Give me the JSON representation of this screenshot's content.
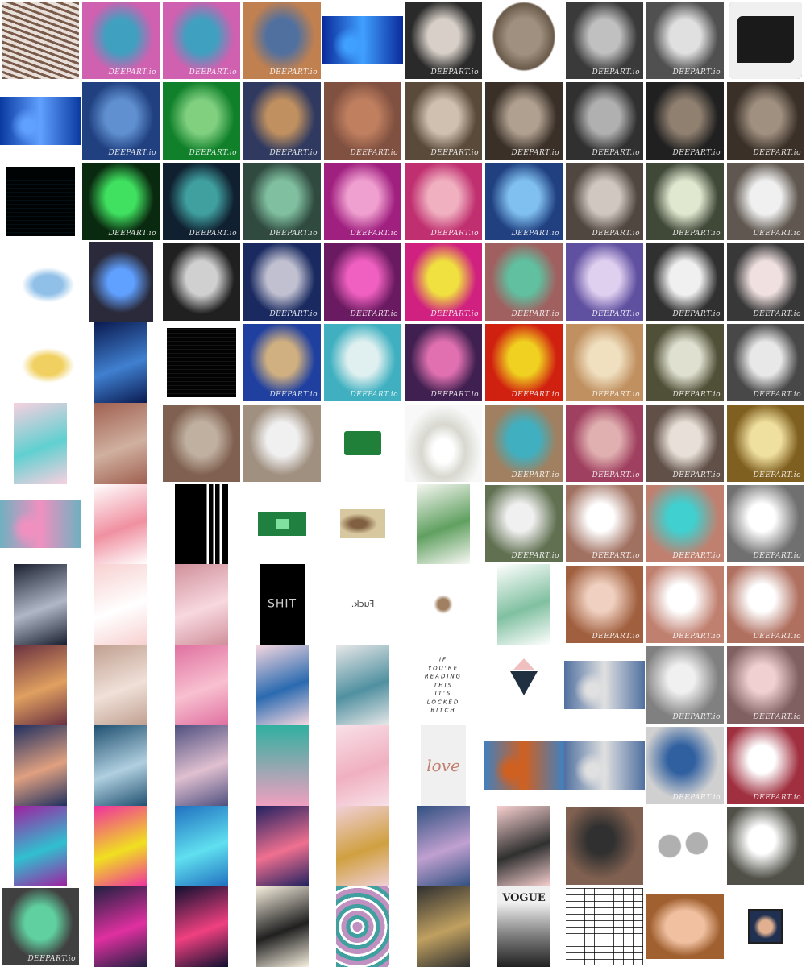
{
  "gallery": {
    "title": "",
    "watermark_text": "DEEPART.io",
    "rows": [
      [
        {
          "label": "zebra-stripe portrait",
          "c1": "#7a5a4a",
          "c2": "#e8e0d8",
          "style": "stripes"
        },
        {
          "label": "psychedelic portrait",
          "c1": "#d060b0",
          "c2": "#40a0c0",
          "style": "portrait",
          "wm": true
        },
        {
          "label": "psychedelic portrait copy",
          "c1": "#d060b0",
          "c2": "#40a0c0",
          "style": "portrait",
          "wm": true
        },
        {
          "label": "colourful painted portrait",
          "c1": "#c08050",
          "c2": "#5070a0",
          "style": "portrait",
          "wm": true
        },
        {
          "label": "blue tech banner",
          "c1": "#0a2a9a",
          "c2": "#40a0ff",
          "style": "banner"
        },
        {
          "label": "monochrome comic portrait",
          "c1": "#2a2a2a",
          "c2": "#d8d0c8",
          "style": "portrait",
          "wm": true
        },
        {
          "label": "carved skull",
          "c1": "#6a5a4a",
          "c2": "#a09080",
          "style": "skull"
        },
        {
          "label": "grey portrait",
          "c1": "#3a3a3a",
          "c2": "#c0c0c0",
          "style": "portrait",
          "wm": true
        },
        {
          "label": "grey portrait bright",
          "c1": "#505050",
          "c2": "#e0e0e0",
          "style": "portrait",
          "wm": true
        },
        {
          "label": "3d printer",
          "c1": "#1a1a1a",
          "c2": "#f0f0f0",
          "style": "printer"
        }
      ],
      [
        {
          "label": "circuit board photo",
          "c1": "#0a3aa0",
          "c2": "#60a0ff",
          "style": "banner"
        },
        {
          "label": "blue circuit portrait",
          "c1": "#204080",
          "c2": "#6090d0",
          "style": "portrait",
          "wm": true
        },
        {
          "label": "green circuit portrait",
          "c1": "#10802a",
          "c2": "#80d080",
          "style": "portrait",
          "wm": true
        },
        {
          "label": "dark blue portrait",
          "c1": "#303a60",
          "c2": "#c09060",
          "style": "portrait",
          "wm": true
        },
        {
          "label": "brown textured portrait",
          "c1": "#805040",
          "c2": "#c08060",
          "style": "portrait",
          "wm": true
        },
        {
          "label": "sepia portrait",
          "c1": "#5a4a3a",
          "c2": "#d0c0b0",
          "style": "portrait",
          "wm": true
        },
        {
          "label": "charcoal portrait",
          "c1": "#3a3028",
          "c2": "#b0a090",
          "style": "portrait",
          "wm": true
        },
        {
          "label": "dark grey portrait",
          "c1": "#303030",
          "c2": "#b0b0b0",
          "style": "portrait",
          "wm": true
        },
        {
          "label": "black portrait",
          "c1": "#202020",
          "c2": "#908070",
          "style": "portrait",
          "wm": true
        },
        {
          "label": "dark sepia portrait",
          "c1": "#3a3028",
          "c2": "#a09080",
          "style": "portrait",
          "wm": true
        }
      ],
      [
        {
          "label": "dark circuit texture",
          "c1": "#0a1a20",
          "c2": "#30a0b0",
          "style": "square-small"
        },
        {
          "label": "neon green circuit portrait",
          "c1": "#0a2a10",
          "c2": "#40e060",
          "style": "portrait",
          "wm": true
        },
        {
          "label": "teal circuit portrait",
          "c1": "#102030",
          "c2": "#40a0a0",
          "style": "portrait",
          "wm": true
        },
        {
          "label": "green teal portrait",
          "c1": "#304a40",
          "c2": "#80c0a0",
          "style": "portrait",
          "wm": true
        },
        {
          "label": "magenta portrait",
          "c1": "#a02080",
          "c2": "#f0a0d0",
          "style": "portrait",
          "wm": true
        },
        {
          "label": "pink portrait",
          "c1": "#c03070",
          "c2": "#f0b0c0",
          "style": "portrait",
          "wm": true
        },
        {
          "label": "blue portrait",
          "c1": "#204080",
          "c2": "#80c0f0",
          "style": "portrait",
          "wm": true
        },
        {
          "label": "soft grey portrait",
          "c1": "#504840",
          "c2": "#d0c8c0",
          "style": "portrait",
          "wm": true
        },
        {
          "label": "light portrait",
          "c1": "#404838",
          "c2": "#e0e8d0",
          "style": "portrait",
          "wm": true
        },
        {
          "label": "sketch portrait",
          "c1": "#605850",
          "c2": "#f0f0f0",
          "style": "portrait",
          "wm": true
        }
      ],
      [
        {
          "label": "princess illustration",
          "c1": "#ffffff",
          "c2": "#90c0e8",
          "style": "figure"
        },
        {
          "label": "pc case",
          "c1": "#2a2a3a",
          "c2": "#60a0ff",
          "style": "pc"
        },
        {
          "label": "bw circuit portrait",
          "c1": "#202020",
          "c2": "#d0d0d0",
          "style": "portrait",
          "wm": false
        },
        {
          "label": "dark blue circuit portrait",
          "c1": "#1a2a60",
          "c2": "#c0c0d0",
          "style": "portrait",
          "wm": true
        },
        {
          "label": "neon pink portrait",
          "c1": "#6a1a60",
          "c2": "#f060c0",
          "style": "portrait",
          "wm": true
        },
        {
          "label": "hot pink portrait",
          "c1": "#d02080",
          "c2": "#f0e040",
          "style": "portrait",
          "wm": true
        },
        {
          "label": "pastel portrait",
          "c1": "#a06060",
          "c2": "#60c0a0",
          "style": "portrait",
          "wm": true
        },
        {
          "label": "lilac portrait",
          "c1": "#6050a0",
          "c2": "#e0d0f0",
          "style": "portrait",
          "wm": true
        },
        {
          "label": "monochrome light portrait",
          "c1": "#303030",
          "c2": "#f0f0f0",
          "style": "portrait",
          "wm": true
        },
        {
          "label": "red accent portrait",
          "c1": "#383838",
          "c2": "#f0e0e0",
          "style": "portrait",
          "wm": true
        }
      ],
      [
        {
          "label": "princess yellow illustration",
          "c1": "#ffffff",
          "c2": "#f0d060",
          "style": "figure"
        },
        {
          "label": "blue motherboard",
          "c1": "#0a1a50",
          "c2": "#4080d0",
          "style": "tall"
        },
        {
          "label": "bw circuit square",
          "c1": "#1a1a1a",
          "c2": "#c0c0c0",
          "style": "square-small"
        },
        {
          "label": "blue beige portrait",
          "c1": "#2040a0",
          "c2": "#d0b080",
          "style": "portrait",
          "wm": true
        },
        {
          "label": "cyan sketch",
          "c1": "#40b0c0",
          "c2": "#e0f0f0",
          "style": "portrait",
          "wm": true
        },
        {
          "label": "violet portrait",
          "c1": "#402050",
          "c2": "#e070b0",
          "style": "portrait",
          "wm": true
        },
        {
          "label": "red yellow portrait",
          "c1": "#d02010",
          "c2": "#f0d020",
          "style": "portrait",
          "wm": true
        },
        {
          "label": "peach portrait",
          "c1": "#c09060",
          "c2": "#f0e0c0",
          "style": "portrait",
          "wm": true
        },
        {
          "label": "olive portrait",
          "c1": "#505038",
          "c2": "#e0e0d0",
          "style": "portrait",
          "wm": true
        },
        {
          "label": "grey sketch portrait",
          "c1": "#484848",
          "c2": "#e8e8e8",
          "style": "portrait",
          "wm": true
        }
      ],
      [
        {
          "label": "pink gem pattern",
          "c1": "#f8d0e0",
          "c2": "#60d0d0",
          "style": "tall"
        },
        {
          "label": "brick wall",
          "c1": "#a06050",
          "c2": "#d0b0a0",
          "style": "tall"
        },
        {
          "label": "brick portrait",
          "c1": "#806050",
          "c2": "#c0b0a0",
          "style": "portrait",
          "wm": false
        },
        {
          "label": "faded brick portrait",
          "c1": "#a09080",
          "c2": "#f0f0f0",
          "style": "portrait",
          "wm": false
        },
        {
          "label": "raspberry pi",
          "c1": "#20803a",
          "c2": "#ffffff",
          "style": "small-obj"
        },
        {
          "label": "white castle model",
          "c1": "#d8d8d0",
          "c2": "#f8f8f8",
          "style": "castle"
        },
        {
          "label": "teal painted portrait",
          "c1": "#a08060",
          "c2": "#40b0c0",
          "style": "portrait",
          "wm": true
        },
        {
          "label": "rose portrait",
          "c1": "#a04060",
          "c2": "#e0b0b0",
          "style": "portrait",
          "wm": true
        },
        {
          "label": "taupe portrait",
          "c1": "#605048",
          "c2": "#e8e0d8",
          "style": "portrait",
          "wm": true
        },
        {
          "label": "gold sketch portrait",
          "c1": "#806020",
          "c2": "#f0e0a0",
          "style": "portrait",
          "wm": true
        }
      ],
      [
        {
          "label": "princesses train",
          "c1": "#70b0c0",
          "c2": "#f090c0",
          "style": "banner"
        },
        {
          "label": "flamingo pattern",
          "c1": "#ffffff",
          "c2": "#f090a0",
          "style": "tall"
        },
        {
          "label": "adidas stripes",
          "c1": "#000000",
          "c2": "#ffffff",
          "style": "adidas"
        },
        {
          "label": "green pcb",
          "c1": "#208040",
          "c2": "#80e0a0",
          "style": "pcb"
        },
        {
          "label": "old map",
          "c1": "#d8c8a0",
          "c2": "#806040",
          "style": "map"
        },
        {
          "label": "succulent",
          "c1": "#f8f8f4",
          "c2": "#60a060",
          "style": "tall"
        },
        {
          "label": "green glow portrait",
          "c1": "#607050",
          "c2": "#f0f0f0",
          "style": "glow",
          "wm": true
        },
        {
          "label": "peach glow portrait",
          "c1": "#a07060",
          "c2": "#ffffff",
          "style": "glow",
          "wm": true
        },
        {
          "label": "teal glow portrait",
          "c1": "#c08070",
          "c2": "#40d0d0",
          "style": "glow",
          "wm": true
        },
        {
          "label": "grey glow portrait",
          "c1": "#707070",
          "c2": "#ffffff",
          "style": "glow",
          "wm": true
        }
      ],
      [
        {
          "label": "moon sky",
          "c1": "#1a2030",
          "c2": "#b0b8c8",
          "style": "tall"
        },
        {
          "label": "pink bokeh",
          "c1": "#f8d0d0",
          "c2": "#ffffff",
          "style": "tall"
        },
        {
          "label": "rose glitter",
          "c1": "#d0909a",
          "c2": "#f8d8e0",
          "style": "tall"
        },
        {
          "label": "black text card",
          "c1": "#000000",
          "c2": "#d0d0d0",
          "style": "text-card",
          "text": "SHIT"
        },
        {
          "label": "white text card",
          "c1": "#ffffff",
          "c2": "#404040",
          "style": "text-plain",
          "text": "Fuck."
        },
        {
          "label": "tiny leopard",
          "c1": "#ffffff",
          "c2": "#a08060",
          "style": "tiny"
        },
        {
          "label": "cactus pattern",
          "c1": "#ffffff",
          "c2": "#80c0a0",
          "style": "tall"
        },
        {
          "label": "peach abstract portrait",
          "c1": "#a06040",
          "c2": "#f0d0c0",
          "style": "glow",
          "wm": true
        },
        {
          "label": "salmon glow portrait",
          "c1": "#c08070",
          "c2": "#ffffff",
          "style": "glow",
          "wm": true
        },
        {
          "label": "coral glow portrait",
          "c1": "#b07060",
          "c2": "#ffffff",
          "style": "glow",
          "wm": true
        }
      ],
      [
        {
          "label": "floral pattern",
          "c1": "#6a3040",
          "c2": "#e0a060",
          "style": "tall"
        },
        {
          "label": "rose gold glitter",
          "c1": "#c0a090",
          "c2": "#f0e0d8",
          "style": "tall"
        },
        {
          "label": "pink sparkles",
          "c1": "#e070a0",
          "c2": "#f8c0d0",
          "style": "tall"
        },
        {
          "label": "pink wave",
          "c1": "#f8d8e0",
          "c2": "#2a6ab0",
          "style": "tall"
        },
        {
          "label": "sea horizon",
          "c1": "#e8e8e8",
          "c2": "#5090a0",
          "style": "tall"
        },
        {
          "label": "locked quote",
          "c1": "#ffffff",
          "c2": "#202020",
          "style": "quote",
          "text": "IF\nYOU'RE\nREADING\nTHIS\nIT'S\nLOCKED\nBITCH"
        },
        {
          "label": "triangle logo",
          "c1": "#ffffff",
          "c2": "#203040",
          "style": "triangle"
        },
        {
          "label": "city river photo",
          "c1": "#5070a0",
          "c2": "#e0e0e0",
          "style": "banner"
        },
        {
          "label": "grey fade portrait",
          "c1": "#808080",
          "c2": "#f0f0f0",
          "style": "glow",
          "wm": true
        },
        {
          "label": "dusty rose portrait",
          "c1": "#806060",
          "c2": "#f0d0d0",
          "style": "glow",
          "wm": true
        }
      ],
      [
        {
          "label": "abstract paint",
          "c1": "#203060",
          "c2": "#e0a080",
          "style": "tall"
        },
        {
          "label": "blue marble swirl",
          "c1": "#205070",
          "c2": "#b0d0e0",
          "style": "tall"
        },
        {
          "label": "purple sky bubbles",
          "c1": "#505080",
          "c2": "#e0c0d0",
          "style": "tall"
        },
        {
          "label": "teal pink gradient",
          "c1": "#30b0a0",
          "c2": "#f0a0c0",
          "style": "gradient"
        },
        {
          "label": "pink marble",
          "c1": "#f8e0e8",
          "c2": "#f0b0c0",
          "style": "tall"
        },
        {
          "label": "love balloon",
          "c1": "#f0f0f0",
          "c2": "#c08070",
          "style": "love",
          "text": "love"
        },
        {
          "label": "hair colours",
          "c1": "#4080c0",
          "c2": "#d06020",
          "style": "banner"
        },
        {
          "label": "city river photo copy",
          "c1": "#5070a0",
          "c2": "#e0e0e0",
          "style": "banner"
        },
        {
          "label": "blue white abstract",
          "c1": "#d0d0d0",
          "c2": "#3060a0",
          "style": "glow",
          "wm": true
        },
        {
          "label": "red glow portrait",
          "c1": "#a03040",
          "c2": "#ffffff",
          "style": "glow",
          "wm": true
        }
      ],
      [
        {
          "label": "colour brush strokes",
          "c1": "#a020a0",
          "c2": "#30c0d0",
          "style": "tall"
        },
        {
          "label": "neon paint",
          "c1": "#f030a0",
          "c2": "#f0e020",
          "style": "tall"
        },
        {
          "label": "blue lotus",
          "c1": "#2070c0",
          "c2": "#60e0f0",
          "style": "tall"
        },
        {
          "label": "paisley",
          "c1": "#202060",
          "c2": "#f07090",
          "style": "tall"
        },
        {
          "label": "gold pink marble",
          "c1": "#f0d0d8",
          "c2": "#d0a040",
          "style": "tall"
        },
        {
          "label": "lavender statue",
          "c1": "#305080",
          "c2": "#c0a0d0",
          "style": "tall"
        },
        {
          "label": "frida portrait",
          "c1": "#f8d0d0",
          "c2": "#303030",
          "style": "tall"
        },
        {
          "label": "rust abstract portrait",
          "c1": "#806050",
          "c2": "#303030",
          "style": "glow",
          "wm": false
        },
        {
          "label": "white mugs",
          "c1": "#ffffff",
          "c2": "#b0b0b0",
          "style": "mugs"
        },
        {
          "label": "dark glow portrait",
          "c1": "#505048",
          "c2": "#ffffff",
          "style": "glow",
          "wm": false
        }
      ],
      [
        {
          "label": "geometric portrait",
          "c1": "#404040",
          "c2": "#60d0a0",
          "style": "portrait",
          "wm": true
        },
        {
          "label": "diamond pattern",
          "c1": "#202040",
          "c2": "#e030a0",
          "style": "tall"
        },
        {
          "label": "neon lips",
          "c1": "#101030",
          "c2": "#f04080",
          "style": "tall"
        },
        {
          "label": "zigzag pattern",
          "c1": "#f8f0e0",
          "c2": "#202020",
          "style": "tall"
        },
        {
          "label": "agate slice",
          "c1": "#c090c0",
          "c2": "#40a0a0",
          "style": "agate"
        },
        {
          "label": "ring render",
          "c1": "#303030",
          "c2": "#c0a060",
          "style": "tall"
        },
        {
          "label": "vogue cover",
          "c1": "#202020",
          "c2": "#f0f0f0",
          "style": "vogue",
          "text": "VOGUE"
        },
        {
          "label": "schematic",
          "c1": "#ffffff",
          "c2": "#404040",
          "style": "schematic"
        },
        {
          "label": "baby photo",
          "c1": "#a06030",
          "c2": "#f0c0a0",
          "style": "baby"
        },
        {
          "label": "baby small",
          "c1": "#203050",
          "c2": "#e0b090",
          "style": "baby-small"
        }
      ]
    ]
  }
}
